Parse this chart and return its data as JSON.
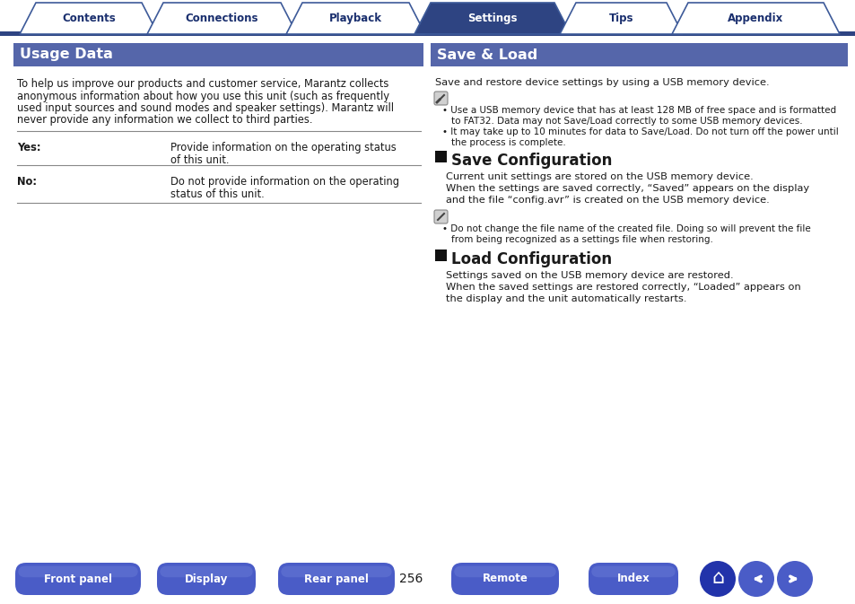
{
  "bg_color": "#ffffff",
  "header_bg": "#2e4482",
  "section_header_bg": "#5566aa",
  "tab_active_bg": "#2e4482",
  "tab_inactive_bg": "#ffffff",
  "tab_border": "#3d5a99",
  "tab_labels": [
    "Contents",
    "Connections",
    "Playback",
    "Settings",
    "Tips",
    "Appendix"
  ],
  "tab_active_index": 3,
  "bottom_btn_color": "#4a5cc7",
  "bottom_btn_labels": [
    "Front panel",
    "Display",
    "Rear panel",
    "Remote",
    "Index"
  ],
  "page_number": "256",
  "left_title": "Usage Data",
  "left_body_lines": [
    "To help us improve our products and customer service, Marantz collects",
    "anonymous information about how you use this unit (such as frequently",
    "used input sources and sound modes and speaker settings). Marantz will",
    "never provide any information we collect to third parties."
  ],
  "yes_label": "Yes:",
  "yes_text_lines": [
    "Provide information on the operating status",
    "of this unit."
  ],
  "no_label": "No:",
  "no_text_lines": [
    "Do not provide information on the operating",
    "status of this unit."
  ],
  "right_title": "Save & Load",
  "right_intro": "Save and restore device settings by using a USB memory device.",
  "right_note1_lines": [
    "Use a USB memory device that has at least 128 MB of free space and is formatted",
    "to FAT32. Data may not Save/Load correctly to some USB memory devices."
  ],
  "right_note2_lines": [
    "It may take up to 10 minutes for data to Save/Load. Do not turn off the power until",
    "the process is complete."
  ],
  "save_config_title": "Save Configuration",
  "save_config_body1": "Current unit settings are stored on the USB memory device.",
  "save_config_body2_lines": [
    "When the settings are saved correctly, “Saved” appears on the display",
    "and the file “config.avr” is created on the USB memory device."
  ],
  "save_config_note_lines": [
    "Do not change the file name of the created file. Doing so will prevent the file",
    "from being recognized as a settings file when restoring."
  ],
  "load_config_title": "Load Configuration",
  "load_config_body1": "Settings saved on the USB memory device are restored.",
  "load_config_body2_lines": [
    "When the saved settings are restored correctly, “Loaded” appears on",
    "the display and the unit automatically restarts."
  ],
  "text_color": "#1a1a1a",
  "dark_blue_text": "#1a2f6e"
}
